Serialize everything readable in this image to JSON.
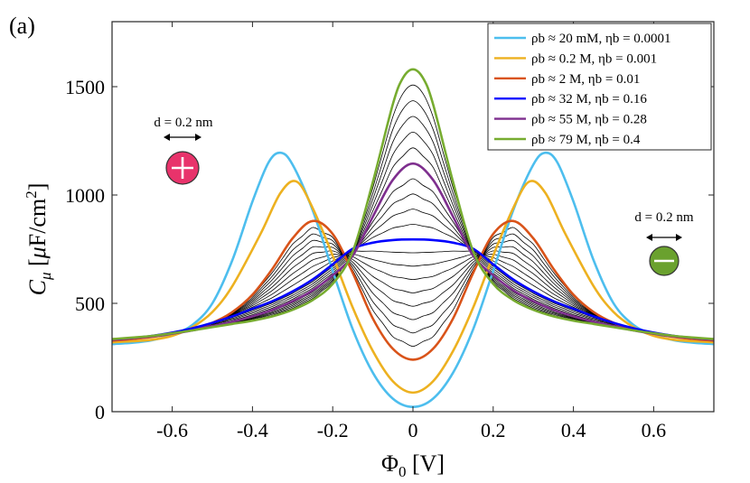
{
  "panel_label": "(a)",
  "annotations": {
    "left": {
      "text": "d = 0.2 nm"
    },
    "right": {
      "text": "d = 0.2 nm"
    }
  },
  "colors": {
    "cation": "#e8336b",
    "anion": "#6aa12e",
    "thin": "#000000"
  },
  "chart_data": {
    "type": "line",
    "xlabel": "Φ₀ [V]",
    "ylabel": "Cμ [μF/cm²]",
    "xlim": [
      -0.75,
      0.75
    ],
    "ylim": [
      0,
      1800
    ],
    "xticks": [
      -0.6,
      -0.4,
      -0.2,
      0,
      0.2,
      0.4,
      0.6
    ],
    "xtick_labels": [
      "-0.6",
      "-0.4",
      "-0.2",
      "0",
      "0.2",
      "0.4",
      "0.6"
    ],
    "yticks": [
      0,
      500,
      1000,
      1500
    ],
    "ytick_labels": [
      "0",
      "500",
      "1000",
      "1500"
    ],
    "grid": false,
    "legend_position": "top-right",
    "series": [
      {
        "name": "ρb ≈ 20 mM, ηb = 0.0001",
        "color": "#4dbeee",
        "width": 2.6,
        "x": [
          0,
          0.05,
          0.1,
          0.15,
          0.2,
          0.25,
          0.3,
          0.33,
          0.36,
          0.4,
          0.45,
          0.5,
          0.55,
          0.6,
          0.65,
          0.7,
          0.75
        ],
        "y": [
          22,
          60,
          180,
          380,
          650,
          930,
          1140,
          1195,
          1150,
          970,
          700,
          500,
          400,
          355,
          330,
          318,
          312
        ]
      },
      {
        "name": "ρb ≈ 0.2 M, ηb = 0.001",
        "color": "#edb120",
        "width": 2.6,
        "x": [
          0,
          0.05,
          0.1,
          0.15,
          0.2,
          0.25,
          0.29,
          0.33,
          0.38,
          0.45,
          0.5,
          0.55,
          0.6,
          0.65,
          0.7,
          0.75
        ],
        "y": [
          88,
          140,
          280,
          480,
          720,
          940,
          1062,
          1010,
          820,
          580,
          460,
          390,
          350,
          332,
          325,
          320
        ]
      },
      {
        "name": "ρb ≈ 2 M, ηb = 0.01",
        "color": "#d95319",
        "width": 2.6,
        "x": [
          0,
          0.05,
          0.1,
          0.15,
          0.2,
          0.25,
          0.3,
          0.35,
          0.4,
          0.45,
          0.5,
          0.55,
          0.6,
          0.65,
          0.7,
          0.75
        ],
        "y": [
          240,
          290,
          430,
          640,
          820,
          880,
          800,
          660,
          540,
          460,
          410,
          380,
          360,
          345,
          335,
          328
        ]
      },
      {
        "name": "ρb ≈ 32 M, ηb = 0.16",
        "color": "#0000ff",
        "width": 2.6,
        "x": [
          0,
          0.05,
          0.1,
          0.15,
          0.2,
          0.25,
          0.3,
          0.35,
          0.4,
          0.45,
          0.5,
          0.55,
          0.6,
          0.65,
          0.7,
          0.75
        ],
        "y": [
          795,
          792,
          780,
          752,
          680,
          610,
          555,
          510,
          475,
          440,
          410,
          385,
          365,
          350,
          340,
          333
        ]
      },
      {
        "name": "ρb ≈ 55 M, ηb = 0.28",
        "color": "#7e2f8e",
        "width": 2.6,
        "x": [
          0,
          0.05,
          0.1,
          0.15,
          0.2,
          0.25,
          0.3,
          0.35,
          0.4,
          0.45,
          0.5,
          0.55,
          0.6,
          0.65,
          0.7,
          0.75
        ],
        "y": [
          1145,
          1070,
          900,
          720,
          630,
          560,
          510,
          470,
          440,
          415,
          395,
          375,
          360,
          348,
          340,
          333
        ]
      },
      {
        "name": "ρb ≈ 79 M, ηb = 0.4",
        "color": "#77ac30",
        "width": 2.6,
        "x": [
          0,
          0.025,
          0.05,
          0.1,
          0.15,
          0.2,
          0.25,
          0.3,
          0.35,
          0.4,
          0.45,
          0.5,
          0.55,
          0.6,
          0.65,
          0.7,
          0.75
        ],
        "y": [
          1580,
          1540,
          1420,
          1060,
          740,
          590,
          515,
          470,
          440,
          420,
          405,
          390,
          375,
          362,
          350,
          342,
          335
        ]
      }
    ]
  }
}
